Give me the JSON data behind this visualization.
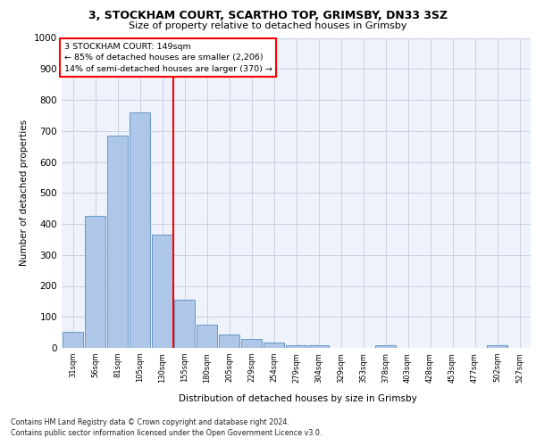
{
  "title_line1": "3, STOCKHAM COURT, SCARTHO TOP, GRIMSBY, DN33 3SZ",
  "title_line2": "Size of property relative to detached houses in Grimsby",
  "xlabel": "Distribution of detached houses by size in Grimsby",
  "ylabel": "Number of detached properties",
  "bar_labels": [
    "31sqm",
    "56sqm",
    "81sqm",
    "105sqm",
    "130sqm",
    "155sqm",
    "180sqm",
    "205sqm",
    "229sqm",
    "254sqm",
    "279sqm",
    "304sqm",
    "329sqm",
    "353sqm",
    "378sqm",
    "403sqm",
    "428sqm",
    "453sqm",
    "477sqm",
    "502sqm",
    "527sqm"
  ],
  "bar_values": [
    52,
    425,
    685,
    760,
    365,
    155,
    75,
    42,
    28,
    18,
    10,
    8,
    0,
    0,
    10,
    0,
    0,
    0,
    0,
    10,
    0
  ],
  "bar_color": "#aec6e8",
  "bar_edge_color": "#5a8fc2",
  "vline_color": "red",
  "vline_pos": 4.5,
  "annotation_line1": "3 STOCKHAM COURT: 149sqm",
  "annotation_line2": "← 85% of detached houses are smaller (2,206)",
  "annotation_line3": "14% of semi-detached houses are larger (370) →",
  "ylim": [
    0,
    1000
  ],
  "yticks": [
    0,
    100,
    200,
    300,
    400,
    500,
    600,
    700,
    800,
    900,
    1000
  ],
  "footnote1": "Contains HM Land Registry data © Crown copyright and database right 2024.",
  "footnote2": "Contains public sector information licensed under the Open Government Licence v3.0.",
  "background_color": "#eef2fb",
  "grid_color": "#c8d0e0"
}
